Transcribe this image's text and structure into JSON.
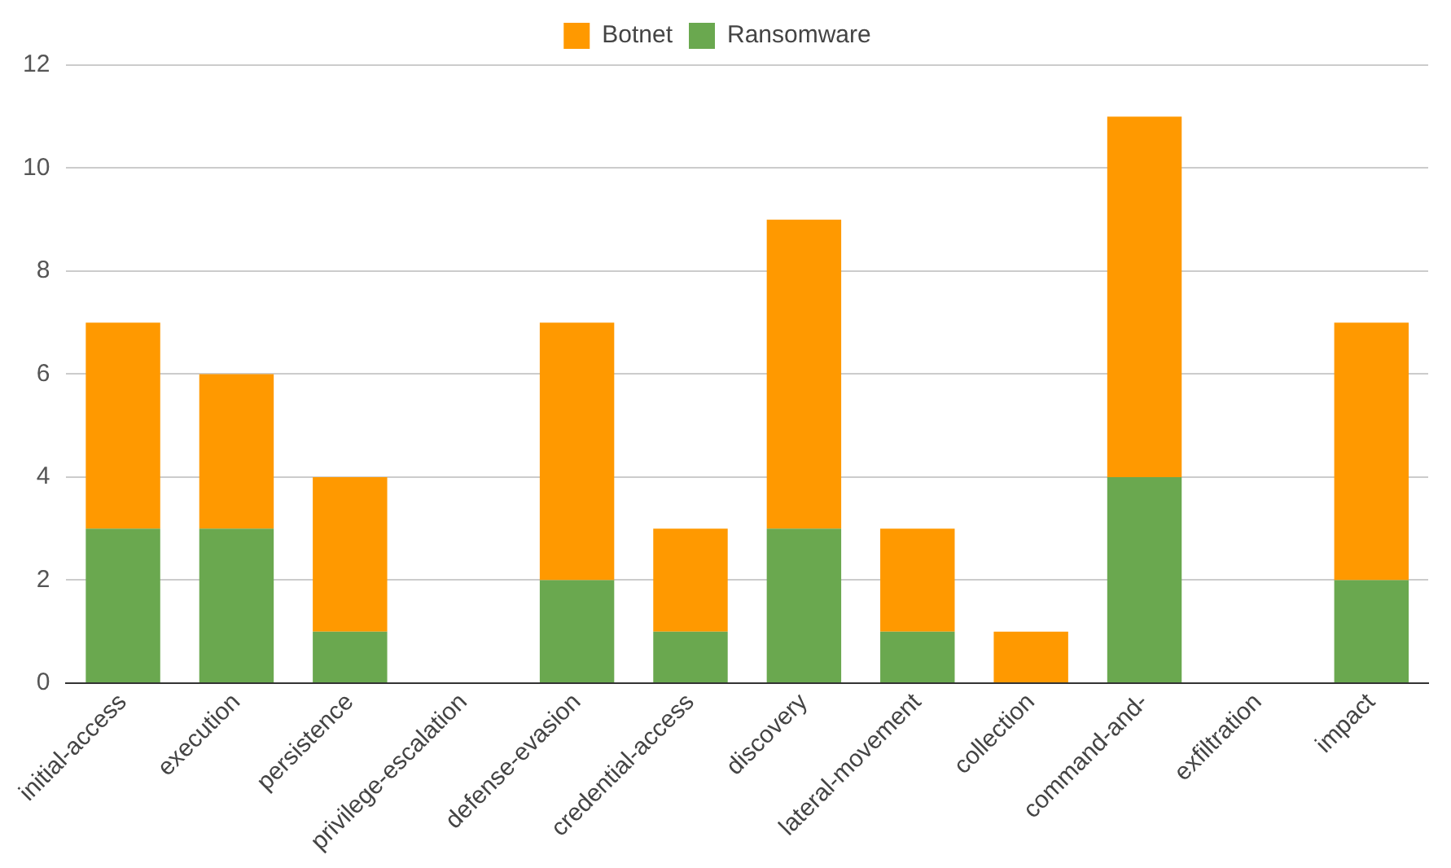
{
  "chart_data": {
    "type": "bar",
    "stacked": true,
    "categories": [
      "initial-access",
      "execution",
      "persistence",
      "privilege-escalation",
      "defense-evasion",
      "credential-access",
      "discovery",
      "lateral-movement",
      "collection",
      "command-and-",
      "exfiltration",
      "impact"
    ],
    "series": [
      {
        "name": "Ransomware",
        "color": "#6aa84f",
        "values": [
          3,
          3,
          1,
          0,
          2,
          1,
          3,
          1,
          0,
          4,
          0,
          2
        ]
      },
      {
        "name": "Botnet",
        "color": "#ff9900",
        "values": [
          4,
          3,
          3,
          0,
          5,
          2,
          6,
          2,
          1,
          7,
          0,
          5
        ]
      }
    ],
    "ylim": [
      0,
      12
    ],
    "yticks": [
      0,
      2,
      4,
      6,
      8,
      10,
      12
    ],
    "grid": "y",
    "legend": "top"
  }
}
